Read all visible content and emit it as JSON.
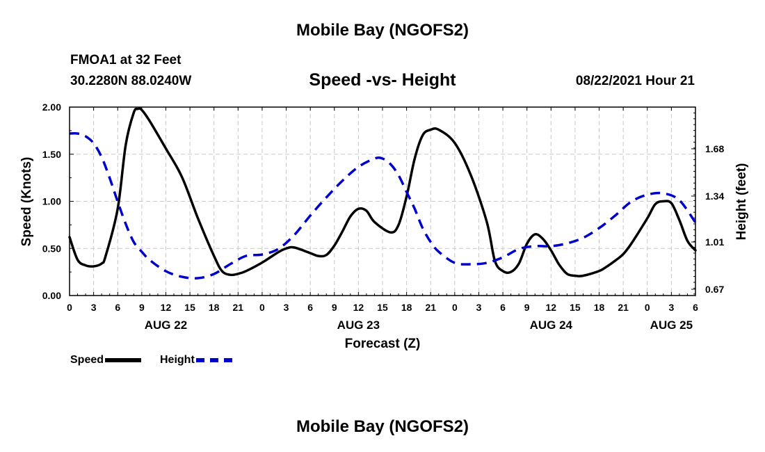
{
  "page": {
    "title_top": "Mobile Bay (NGOFS2)",
    "title_bottom": "Mobile Bay (NGOFS2)",
    "station": "FMOA1 at 32 Feet",
    "coords": "30.2280N  88.0240W",
    "subtitle": "Speed -vs- Height",
    "datetime": "08/22/2021 Hour 21"
  },
  "chart_data": {
    "type": "line",
    "xlabel": "Forecast (Z)",
    "ylabel_left": "Speed (Knots)",
    "ylabel_right": "Height (feet)",
    "x_range_hours": [
      0,
      78
    ],
    "y_left_range": [
      0,
      2.0
    ],
    "y_left_ticks": [
      "0.00",
      "0.50",
      "1.00",
      "1.50",
      "2.00"
    ],
    "y_right_ticks": [
      "0.67",
      "1.01",
      "1.34",
      "1.68"
    ],
    "x_tick_labels": [
      "0",
      "3",
      "6",
      "9",
      "12",
      "15",
      "18",
      "21",
      "0",
      "3",
      "6",
      "9",
      "12",
      "15",
      "18",
      "21",
      "0",
      "3",
      "6",
      "9",
      "12",
      "15",
      "18",
      "21",
      "0",
      "3",
      "6"
    ],
    "day_labels": [
      {
        "hour": 12,
        "text": "AUG 22"
      },
      {
        "hour": 36,
        "text": "AUG 23"
      },
      {
        "hour": 60,
        "text": "AUG 24"
      },
      {
        "hour": 75,
        "text": "AUG 25"
      }
    ],
    "grid": true,
    "legend_position": "bottom-left",
    "series": [
      {
        "name": "Speed",
        "color": "#000000",
        "style": "solid",
        "axis": "left",
        "x": [
          0,
          1,
          2,
          3,
          4,
          4.5,
          6,
          7,
          8,
          8.5,
          9,
          10,
          12,
          14,
          16,
          18,
          19,
          20,
          21,
          22,
          24,
          26,
          27,
          28,
          30,
          31,
          32,
          33,
          34,
          35,
          36,
          37,
          38,
          40,
          41,
          42,
          43,
          44,
          45,
          46,
          48,
          50,
          52,
          53,
          54,
          55,
          56,
          57,
          58,
          59,
          60,
          61,
          62,
          63,
          64,
          66,
          67,
          68,
          69,
          70,
          72,
          73,
          74,
          75,
          76,
          77,
          78
        ],
        "values": [
          0.62,
          0.38,
          0.32,
          0.31,
          0.34,
          0.42,
          0.92,
          1.6,
          1.94,
          1.98,
          1.97,
          1.85,
          1.56,
          1.26,
          0.82,
          0.42,
          0.26,
          0.22,
          0.23,
          0.26,
          0.35,
          0.46,
          0.5,
          0.51,
          0.45,
          0.42,
          0.43,
          0.53,
          0.68,
          0.84,
          0.92,
          0.9,
          0.78,
          0.67,
          0.75,
          1.05,
          1.45,
          1.7,
          1.76,
          1.76,
          1.62,
          1.28,
          0.78,
          0.37,
          0.26,
          0.25,
          0.34,
          0.55,
          0.65,
          0.6,
          0.48,
          0.33,
          0.23,
          0.21,
          0.21,
          0.26,
          0.31,
          0.37,
          0.44,
          0.55,
          0.82,
          0.97,
          1.0,
          0.98,
          0.8,
          0.58,
          0.48
        ]
      },
      {
        "name": "Height",
        "color": "#0000cc",
        "style": "dashed",
        "axis": "right",
        "x": [
          0,
          1,
          2,
          3,
          4,
          5,
          6,
          7,
          8,
          9,
          10,
          12,
          14,
          16,
          18,
          20,
          22,
          24,
          26,
          28,
          30,
          32,
          34,
          36,
          38,
          39,
          40,
          41,
          42,
          43,
          44,
          45,
          46,
          48,
          50,
          52,
          54,
          56,
          58,
          60,
          62,
          64,
          66,
          68,
          70,
          72,
          74,
          76,
          78
        ],
        "values": [
          1.79,
          1.79,
          1.77,
          1.72,
          1.62,
          1.47,
          1.3,
          1.14,
          1.01,
          0.94,
          0.88,
          0.8,
          0.76,
          0.75,
          0.78,
          0.85,
          0.91,
          0.92,
          0.96,
          1.06,
          1.2,
          1.33,
          1.45,
          1.55,
          1.61,
          1.61,
          1.57,
          1.49,
          1.37,
          1.25,
          1.11,
          1.01,
          0.94,
          0.86,
          0.85,
          0.86,
          0.9,
          0.96,
          0.98,
          0.98,
          1.0,
          1.04,
          1.11,
          1.2,
          1.3,
          1.35,
          1.36,
          1.31,
          1.15
        ]
      }
    ]
  }
}
